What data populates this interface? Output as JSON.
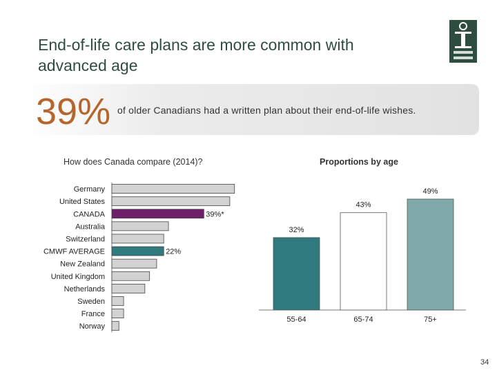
{
  "slide": {
    "title": "End-of-life care plans are more common with advanced age",
    "stat_value": "39%",
    "stat_text": "of older Canadians had a written plan about their end-of-life wishes.",
    "page_number": "34"
  },
  "colors": {
    "title": "#2f4d3f",
    "stat": "#b5662c",
    "canada": "#6d1f6a",
    "cmwf": "#2f7a7e",
    "other_bars": "#d2d2d2",
    "age_55_64": "#2f7a7e",
    "age_65_74": "#ffffff",
    "age_75_plus": "#7fa9ab"
  },
  "icons": {
    "logo": "cihi-logo-icon"
  },
  "chart_data": [
    {
      "type": "bar",
      "orientation": "horizontal",
      "title": "How does Canada compare (2014)?",
      "categories": [
        "Germany",
        "United States",
        "CANADA",
        "Australia",
        "Switzerland",
        "CMWF AVERAGE",
        "New Zealand",
        "United Kingdom",
        "Netherlands",
        "Sweden",
        "France",
        "Norway"
      ],
      "values": [
        52,
        50,
        39,
        24,
        22,
        22,
        19,
        16,
        14,
        5,
        5,
        3
      ],
      "data_labels": [
        "",
        "",
        "39%*",
        "",
        "",
        "22%",
        "",
        "",
        "",
        "",
        "",
        ""
      ],
      "highlight": {
        "CANADA": "canada",
        "CMWF AVERAGE": "cmwf"
      },
      "xlim": [
        0,
        55
      ]
    },
    {
      "type": "bar",
      "title": "Proportions by age",
      "categories": [
        "55-64",
        "65-74",
        "75+"
      ],
      "values": [
        32,
        43,
        49
      ],
      "data_labels": [
        "32%",
        "43%",
        "49%"
      ],
      "ylim": [
        0,
        49
      ]
    }
  ]
}
